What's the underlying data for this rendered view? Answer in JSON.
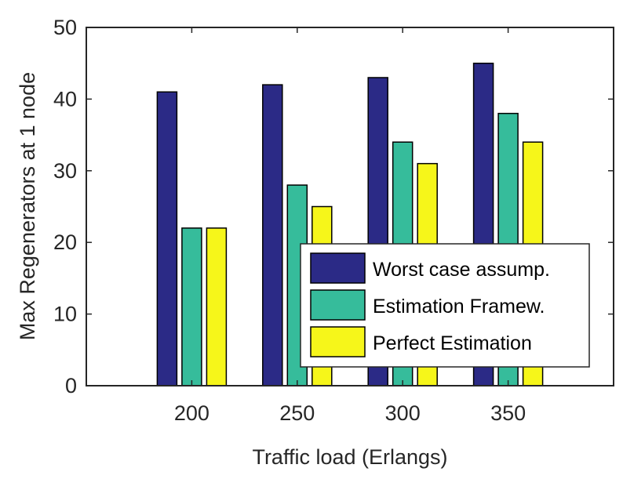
{
  "chart_data": {
    "type": "bar",
    "categories": [
      "200",
      "250",
      "300",
      "350"
    ],
    "series": [
      {
        "name": "Worst case assump.",
        "values": [
          41,
          42,
          43,
          45
        ],
        "color": "#2b2a86"
      },
      {
        "name": "Estimation Framew.",
        "values": [
          22,
          28,
          34,
          38
        ],
        "color": "#36bc9b"
      },
      {
        "name": "Perfect Estimation",
        "values": [
          22,
          25,
          31,
          34
        ],
        "color": "#f6f61a"
      }
    ],
    "xlabel": "Traffic load (Erlangs)",
    "ylabel": "Max Regenerators at 1 node",
    "ylim": [
      0,
      50
    ],
    "yticks": [
      "0",
      "10",
      "20",
      "30",
      "40",
      "50"
    ],
    "xlim": [
      150,
      400
    ],
    "grid": false,
    "legend_position": "bottom-right"
  }
}
